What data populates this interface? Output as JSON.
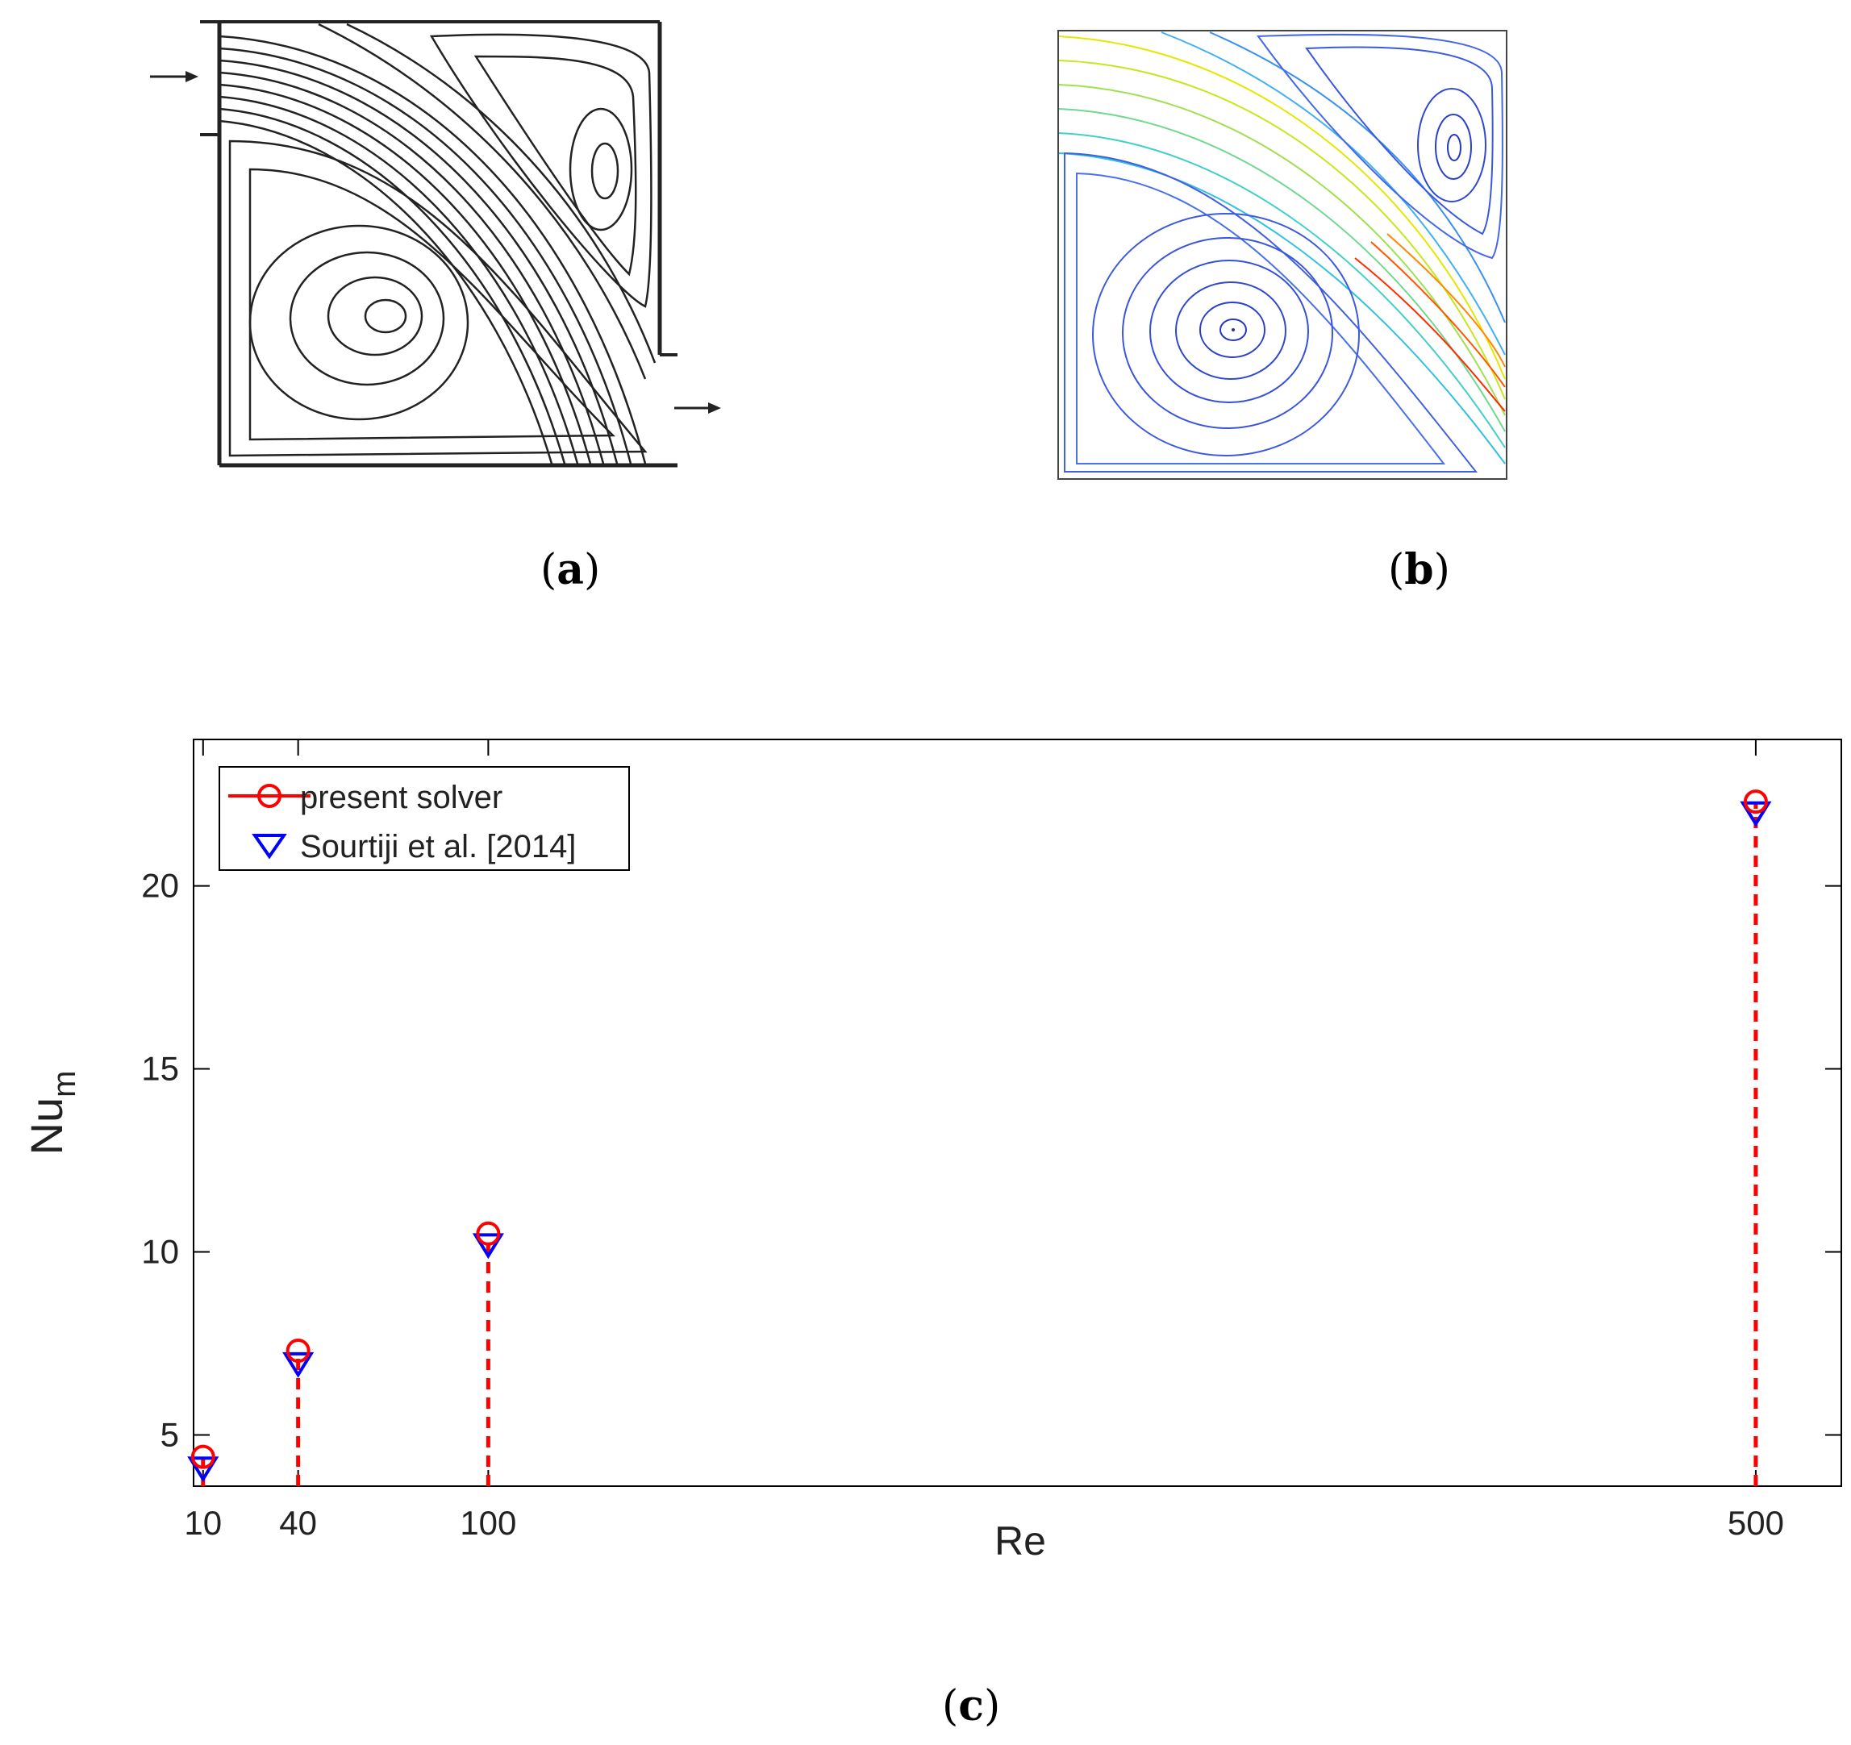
{
  "panels": {
    "a": {
      "label": "a"
    },
    "b": {
      "label": "b"
    },
    "c": {
      "label": "c"
    }
  },
  "chart_data": {
    "type": "scatter",
    "title": "",
    "xlabel": "Re",
    "ylabel": "Nu",
    "ylabel_subscript": "m",
    "x": [
      10,
      40,
      100,
      500
    ],
    "xticks": [
      "10",
      "40",
      "100",
      "500"
    ],
    "xlim": [
      7,
      527
    ],
    "ylim": [
      3.6,
      24
    ],
    "yticks": [
      5,
      10,
      15,
      20
    ],
    "ytick_labels": [
      "5",
      "10",
      "15",
      "20"
    ],
    "grid": false,
    "legend_position": "top-left",
    "series": [
      {
        "name": "present solver",
        "marker": "circle",
        "color": "#ff0000",
        "stem_style": "dashed",
        "values": [
          4.4,
          7.3,
          10.5,
          22.3
        ]
      },
      {
        "name": "Sourtiji et al. [2014]",
        "marker": "triangle-down",
        "color": "#0000ff",
        "values": [
          4.1,
          6.95,
          10.2,
          22.0
        ]
      }
    ]
  }
}
